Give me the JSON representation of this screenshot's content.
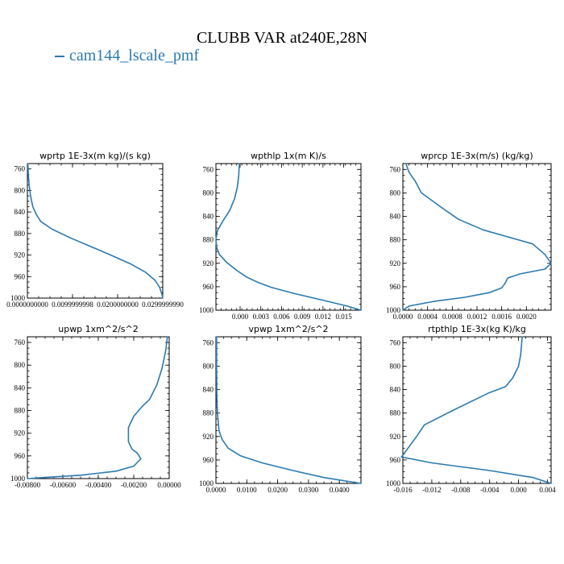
{
  "figure": {
    "title": "CLUBB VAR at240E,28N",
    "legend": [
      {
        "label": "cam144_lscale_pmf",
        "color": "#2a7ab0"
      }
    ]
  },
  "chart_data": [
    {
      "type": "line",
      "title": "wprtp  1E-3x(m kg)/(s kg)",
      "xlim": [
        0.0,
        0.03
      ],
      "ylim": [
        1000,
        750
      ],
      "xticks": [
        0.0,
        0.01,
        0.02,
        0.03
      ],
      "xtick_labels": [
        "0.0000000000",
        "0.0099999998",
        "0.0200000000",
        "0.0299999990"
      ],
      "yticks": [
        760,
        800,
        840,
        880,
        920,
        960,
        1000
      ],
      "series": [
        {
          "x": [
            0.0001,
            0.0002,
            0.0004,
            0.0007,
            0.0012,
            0.002,
            0.003,
            0.0055,
            0.0095,
            0.014,
            0.0185,
            0.023,
            0.0262,
            0.0283,
            0.0293,
            0.0298,
            0.03
          ],
          "y": [
            750,
            770,
            790,
            810,
            830,
            845,
            858,
            872,
            888,
            904,
            920,
            937,
            952,
            967,
            980,
            992,
            1000
          ],
          "color": "#2a7ab0"
        }
      ]
    },
    {
      "type": "line",
      "title": "wpthlp  1x(m K)/s",
      "xlim": [
        -0.0035,
        0.0175
      ],
      "ylim": [
        1000,
        750
      ],
      "xticks": [
        0.0,
        0.003,
        0.006,
        0.009,
        0.012,
        0.015
      ],
      "xtick_labels": [
        "0.000",
        "0.003",
        "0.006",
        "0.009",
        "0.012",
        "0.015"
      ],
      "yticks": [
        760,
        800,
        840,
        880,
        920,
        960,
        1000
      ],
      "series": [
        {
          "x": [
            -0.0001,
            -0.0002,
            -0.0004,
            -0.0008,
            -0.0015,
            -0.0025,
            -0.0033,
            -0.0035,
            -0.0034,
            -0.003,
            -0.002,
            -0.0005,
            0.001,
            0.0025,
            0.0045,
            0.008,
            0.012,
            0.0155,
            0.0175
          ],
          "y": [
            750,
            770,
            790,
            810,
            830,
            848,
            865,
            880,
            893,
            905,
            918,
            932,
            944,
            952,
            961,
            972,
            983,
            993,
            1000
          ],
          "color": "#2a7ab0"
        }
      ]
    },
    {
      "type": "line",
      "title": "wprcp  1E-3x(m/s) (kg/kg)",
      "xlim": [
        0.0,
        0.0024
      ],
      "ylim": [
        1000,
        750
      ],
      "xticks": [
        0.0,
        0.0004,
        0.0008,
        0.0012,
        0.0016,
        0.002
      ],
      "xtick_labels": [
        "0.0000",
        "0.0004",
        "0.0008",
        "0.0012",
        "0.0016",
        "0.0020"
      ],
      "yticks": [
        760,
        800,
        840,
        880,
        920,
        960,
        1000
      ],
      "series": [
        {
          "x": [
            5e-05,
            0.0001,
            0.0002,
            0.0003,
            0.0006,
            0.0009,
            0.0013,
            0.0017,
            0.0021,
            0.0023,
            0.0024,
            0.0023,
            0.0019,
            0.0017,
            0.00165,
            0.0016,
            0.0014,
            0.001,
            0.0005,
            0.0001,
            0.0
          ],
          "y": [
            750,
            765,
            780,
            800,
            823,
            845,
            863,
            875,
            887,
            905,
            920,
            930,
            938,
            945,
            955,
            962,
            970,
            978,
            985,
            993,
            1000
          ],
          "color": "#2a7ab0"
        }
      ]
    },
    {
      "type": "line",
      "title": "upwp  1xm^2/s^2",
      "xlim": [
        -0.008,
        0.0
      ],
      "ylim": [
        1000,
        750
      ],
      "xticks": [
        -0.008,
        -0.006,
        -0.004,
        -0.002,
        0.0
      ],
      "xtick_labels": [
        "-0.00800",
        "-0.00600",
        "-0.00400",
        "-0.00200",
        "0.00000"
      ],
      "yticks": [
        760,
        800,
        840,
        880,
        920,
        960,
        1000
      ],
      "series": [
        {
          "x": [
            -0.0001,
            -0.0002,
            -0.0004,
            -0.0007,
            -0.0011,
            -0.0015,
            -0.002,
            -0.0023,
            -0.0023,
            -0.0021,
            -0.0018,
            -0.0016,
            -0.002,
            -0.003,
            -0.005,
            -0.007,
            -0.008
          ],
          "y": [
            750,
            775,
            805,
            835,
            860,
            872,
            890,
            910,
            935,
            948,
            955,
            965,
            978,
            987,
            994,
            998,
            1000
          ],
          "color": "#2a7ab0"
        }
      ]
    },
    {
      "type": "line",
      "title": "vpwp  1xm^2/s^2",
      "xlim": [
        0.0,
        0.047
      ],
      "ylim": [
        1000,
        750
      ],
      "xticks": [
        0.0,
        0.01,
        0.02,
        0.03,
        0.04
      ],
      "xtick_labels": [
        "0.0000",
        "0.0100",
        "0.0200",
        "0.0300",
        "0.0400"
      ],
      "yticks": [
        760,
        800,
        840,
        880,
        920,
        960,
        1000
      ],
      "series": [
        {
          "x": [
            0.0002,
            0.0002,
            0.0003,
            0.0005,
            0.001,
            0.002,
            0.004,
            0.008,
            0.015,
            0.025,
            0.035,
            0.047
          ],
          "y": [
            750,
            800,
            850,
            880,
            910,
            925,
            940,
            953,
            965,
            978,
            990,
            1000
          ],
          "color": "#2a7ab0"
        }
      ]
    },
    {
      "type": "line",
      "title": "rtpthlp  1E-3x(kg K)/kg",
      "xlim": [
        -0.016,
        0.0045
      ],
      "ylim": [
        1000,
        750
      ],
      "xticks": [
        -0.016,
        -0.012,
        -0.008,
        -0.004,
        0.0,
        0.004
      ],
      "xtick_labels": [
        "-0.016",
        "-0.012",
        "-0.008",
        "-0.004",
        "0.000",
        "0.004"
      ],
      "yticks": [
        760,
        800,
        840,
        880,
        920,
        960,
        1000
      ],
      "series": [
        {
          "x": [
            0.0005,
            0.0003,
            0.0,
            -0.0008,
            -0.0018,
            -0.004,
            -0.009,
            -0.013,
            -0.014,
            -0.015,
            -0.0162,
            -0.012,
            -0.004,
            0.002,
            0.0045
          ],
          "y": [
            750,
            780,
            800,
            820,
            835,
            845,
            875,
            900,
            918,
            935,
            955,
            965,
            978,
            990,
            1000
          ],
          "color": "#2a7ab0"
        }
      ]
    }
  ]
}
